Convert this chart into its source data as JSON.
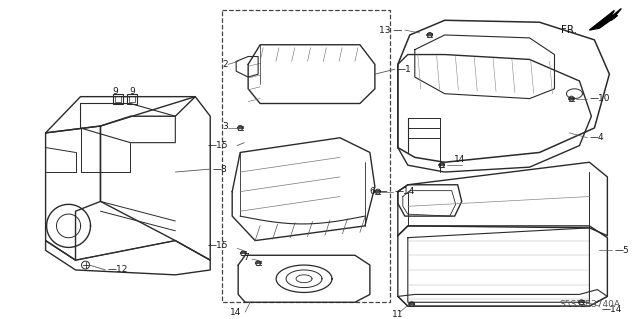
{
  "background_color": "#ffffff",
  "diagram_code": "S5S3-B3740A",
  "fr_label": "FR.",
  "line_color": "#2a2a2a",
  "text_color": "#1a1a1a",
  "light_line": "#555555",
  "figsize": [
    6.4,
    3.19
  ],
  "dpi": 100
}
